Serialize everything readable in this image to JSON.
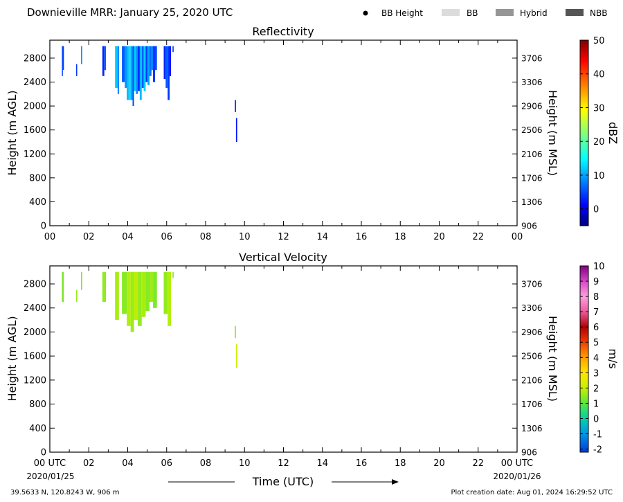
{
  "header": {
    "title": "Downieville MRR:  January 25, 2020 UTC",
    "legend": [
      {
        "label": "BB Height",
        "kind": "dot",
        "color": "#000000"
      },
      {
        "label": "BB",
        "kind": "swatch",
        "color": "#dcdcdc"
      },
      {
        "label": "Hybrid",
        "kind": "swatch",
        "color": "#969696"
      },
      {
        "label": "NBB",
        "kind": "swatch",
        "color": "#555555"
      }
    ]
  },
  "x_axis": {
    "label": "Time (UTC)",
    "top_ticks": [
      "00",
      "02",
      "04",
      "06",
      "08",
      "10",
      "12",
      "14",
      "16",
      "18",
      "20",
      "22",
      "00"
    ],
    "bottom_ticks": [
      "00 UTC",
      "02",
      "04",
      "06",
      "08",
      "10",
      "12",
      "14",
      "16",
      "18",
      "20",
      "22",
      "00 UTC"
    ],
    "start_date": "2020/01/25",
    "end_date": "2020/01/26"
  },
  "footer": {
    "location": "39.5633 N, 120.8243 W, 906 m",
    "created": "Plot creation date: Aug 01, 2024 16:29:52 UTC"
  },
  "chart_data": [
    {
      "type": "heatmap",
      "title": "Reflectivity",
      "xlabel": "Time (UTC)",
      "ylabel": "Height (m AGL)",
      "ylabel_right": "Height (m MSL)",
      "xlim": [
        0,
        24
      ],
      "ylim": [
        0,
        3100
      ],
      "yticks": [
        0,
        400,
        800,
        1200,
        1600,
        2000,
        2400,
        2800
      ],
      "yticks_right": [
        "906",
        "1306",
        "1706",
        "2106",
        "2506",
        "2906",
        "3306",
        "3706"
      ],
      "colorbar": {
        "label": "dBZ",
        "range": [
          -5,
          50
        ],
        "ticks": [
          0,
          10,
          20,
          30,
          40,
          50
        ]
      },
      "cells": [
        {
          "t0": 0.62,
          "t1": 0.66,
          "h0": 2500,
          "h1": 3000,
          "value": 5
        },
        {
          "t0": 0.66,
          "t1": 0.72,
          "h0": 2600,
          "h1": 3000,
          "value": 4
        },
        {
          "t0": 1.35,
          "t1": 1.4,
          "h0": 2500,
          "h1": 2700,
          "value": 4
        },
        {
          "t0": 1.6,
          "t1": 1.66,
          "h0": 2700,
          "h1": 3000,
          "value": 9
        },
        {
          "t0": 2.7,
          "t1": 2.8,
          "h0": 2500,
          "h1": 3000,
          "value": 3
        },
        {
          "t0": 2.8,
          "t1": 2.88,
          "h0": 2600,
          "h1": 3000,
          "value": 6
        },
        {
          "t0": 3.35,
          "t1": 3.48,
          "h0": 2300,
          "h1": 3000,
          "value": 12
        },
        {
          "t0": 3.48,
          "t1": 3.55,
          "h0": 2200,
          "h1": 3000,
          "value": 8
        },
        {
          "t0": 3.7,
          "t1": 3.85,
          "h0": 2400,
          "h1": 3000,
          "value": 6
        },
        {
          "t0": 3.85,
          "t1": 3.95,
          "h0": 2300,
          "h1": 3000,
          "value": 9
        },
        {
          "t0": 3.95,
          "t1": 4.05,
          "h0": 2100,
          "h1": 3000,
          "value": 11
        },
        {
          "t0": 4.05,
          "t1": 4.15,
          "h0": 2100,
          "h1": 3000,
          "value": 13
        },
        {
          "t0": 4.15,
          "t1": 4.25,
          "h0": 2100,
          "h1": 3000,
          "value": 10
        },
        {
          "t0": 4.25,
          "t1": 4.32,
          "h0": 2000,
          "h1": 3000,
          "value": 5
        },
        {
          "t0": 4.32,
          "t1": 4.42,
          "h0": 2250,
          "h1": 3000,
          "value": 12
        },
        {
          "t0": 4.42,
          "t1": 4.52,
          "h0": 2200,
          "h1": 3000,
          "value": 9
        },
        {
          "t0": 4.52,
          "t1": 4.62,
          "h0": 2250,
          "h1": 3000,
          "value": 3
        },
        {
          "t0": 4.62,
          "t1": 4.72,
          "h0": 2100,
          "h1": 3000,
          "value": 11
        },
        {
          "t0": 4.72,
          "t1": 4.82,
          "h0": 2300,
          "h1": 3000,
          "value": 6
        },
        {
          "t0": 4.82,
          "t1": 4.92,
          "h0": 2250,
          "h1": 3000,
          "value": 12
        },
        {
          "t0": 4.92,
          "t1": 5.02,
          "h0": 2400,
          "h1": 3000,
          "value": 4
        },
        {
          "t0": 5.02,
          "t1": 5.12,
          "h0": 2350,
          "h1": 3000,
          "value": 10
        },
        {
          "t0": 5.12,
          "t1": 5.22,
          "h0": 2500,
          "h1": 3000,
          "value": 7
        },
        {
          "t0": 5.22,
          "t1": 5.3,
          "h0": 2600,
          "h1": 3000,
          "value": 8
        },
        {
          "t0": 5.3,
          "t1": 5.4,
          "h0": 2400,
          "h1": 3000,
          "value": 3
        },
        {
          "t0": 5.4,
          "t1": 5.5,
          "h0": 2600,
          "h1": 3000,
          "value": 5
        },
        {
          "t0": 5.85,
          "t1": 5.95,
          "h0": 2450,
          "h1": 3000,
          "value": 3
        },
        {
          "t0": 5.95,
          "t1": 6.05,
          "h0": 2300,
          "h1": 3000,
          "value": 6
        },
        {
          "t0": 6.05,
          "t1": 6.15,
          "h0": 2100,
          "h1": 3000,
          "value": 4
        },
        {
          "t0": 6.15,
          "t1": 6.22,
          "h0": 2500,
          "h1": 3000,
          "value": 2
        },
        {
          "t0": 6.3,
          "t1": 6.36,
          "h0": 2900,
          "h1": 3000,
          "value": 5
        },
        {
          "t0": 9.5,
          "t1": 9.56,
          "h0": 1900,
          "h1": 2100,
          "value": 3
        },
        {
          "t0": 9.56,
          "t1": 9.62,
          "h0": 1400,
          "h1": 1800,
          "value": 2
        }
      ]
    },
    {
      "type": "heatmap",
      "title": "Vertical Velocity",
      "xlabel": "Time (UTC)",
      "ylabel": "Height (m AGL)",
      "ylabel_right": "Height (m MSL)",
      "xlim": [
        0,
        24
      ],
      "ylim": [
        0,
        3100
      ],
      "yticks": [
        0,
        400,
        800,
        1200,
        1600,
        2000,
        2400,
        2800
      ],
      "yticks_right": [
        "906",
        "1306",
        "1706",
        "2106",
        "2506",
        "2906",
        "3306",
        "3706"
      ],
      "colorbar": {
        "label": "m/s",
        "range": [
          -2.2,
          10
        ],
        "ticks": [
          -2,
          -1,
          0,
          1,
          2,
          3,
          4,
          5,
          6,
          7,
          8,
          9,
          10
        ]
      },
      "cells": [
        {
          "t0": 0.62,
          "t1": 0.72,
          "h0": 2500,
          "h1": 3000,
          "value": 1.3
        },
        {
          "t0": 1.35,
          "t1": 1.4,
          "h0": 2500,
          "h1": 2700,
          "value": 1.5
        },
        {
          "t0": 1.6,
          "t1": 1.66,
          "h0": 2700,
          "h1": 3000,
          "value": 1.4
        },
        {
          "t0": 2.7,
          "t1": 2.88,
          "h0": 2500,
          "h1": 3000,
          "value": 1.5
        },
        {
          "t0": 3.35,
          "t1": 3.55,
          "h0": 2200,
          "h1": 3000,
          "value": 1.7
        },
        {
          "t0": 3.7,
          "t1": 3.95,
          "h0": 2300,
          "h1": 3000,
          "value": 1.4
        },
        {
          "t0": 3.95,
          "t1": 4.15,
          "h0": 2100,
          "h1": 3000,
          "value": 1.8
        },
        {
          "t0": 4.15,
          "t1": 4.32,
          "h0": 2000,
          "h1": 3000,
          "value": 1.6
        },
        {
          "t0": 4.32,
          "t1": 4.52,
          "h0": 2200,
          "h1": 3000,
          "value": 1.9
        },
        {
          "t0": 4.52,
          "t1": 4.72,
          "h0": 2100,
          "h1": 3000,
          "value": 1.5
        },
        {
          "t0": 4.72,
          "t1": 4.92,
          "h0": 2250,
          "h1": 3000,
          "value": 1.7
        },
        {
          "t0": 4.92,
          "t1": 5.12,
          "h0": 2350,
          "h1": 3000,
          "value": 1.4
        },
        {
          "t0": 5.12,
          "t1": 5.3,
          "h0": 2500,
          "h1": 3000,
          "value": 1.6
        },
        {
          "t0": 5.3,
          "t1": 5.5,
          "h0": 2400,
          "h1": 3000,
          "value": 1.3
        },
        {
          "t0": 5.85,
          "t1": 6.05,
          "h0": 2300,
          "h1": 3000,
          "value": 1.5
        },
        {
          "t0": 6.05,
          "t1": 6.22,
          "h0": 2100,
          "h1": 3000,
          "value": 1.8
        },
        {
          "t0": 6.3,
          "t1": 6.36,
          "h0": 2900,
          "h1": 3000,
          "value": 1.4
        },
        {
          "t0": 9.5,
          "t1": 9.56,
          "h0": 1900,
          "h1": 2100,
          "value": 1.5
        },
        {
          "t0": 9.56,
          "t1": 9.62,
          "h0": 1400,
          "h1": 1800,
          "value": 2.1
        }
      ]
    }
  ]
}
